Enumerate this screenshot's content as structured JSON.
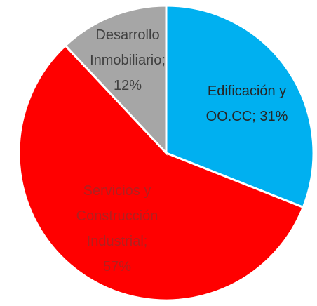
{
  "chart_data": {
    "type": "pie",
    "categories": [
      "Edificación y OO.CC",
      "Servicios y Construcción Industrial",
      "Desarrollo Inmobiliario"
    ],
    "values": [
      31,
      57,
      12
    ],
    "value_labels": [
      "31%",
      "57%",
      "12%"
    ],
    "label_separator": ";",
    "colors": [
      "#00b0f0",
      "#ff0000",
      "#a6a6a6"
    ],
    "label_colors": [
      "#262626",
      "#b02020",
      "#404040"
    ]
  }
}
